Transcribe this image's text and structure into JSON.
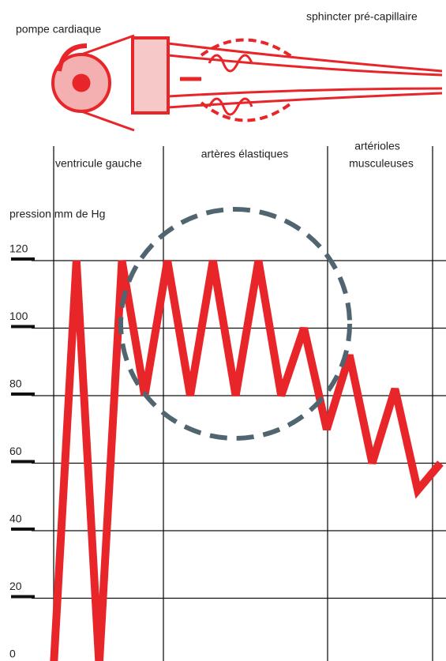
{
  "chart_data": {
    "type": "line",
    "ylabel": "pression mm de Hg",
    "annotations": [
      "pompe cardiaque",
      "sphincter pré-capillaire",
      "ventricule gauche",
      "artères élastiques",
      "artérioles",
      "musculeuses"
    ],
    "categories": [
      null,
      null,
      null,
      null,
      null,
      null,
      null,
      null,
      null,
      null,
      null,
      null,
      null,
      null,
      null,
      null,
      null,
      null
    ],
    "series": [
      {
        "name": null,
        "color": "#e8262a",
        "values": [
          0,
          120,
          0,
          120,
          80,
          120,
          80,
          120,
          80,
          120,
          80,
          100,
          70,
          92,
          60,
          82,
          52,
          60
        ]
      }
    ],
    "ylim": [
      0,
      120
    ],
    "yticks": [
      0,
      20,
      40,
      60,
      80,
      100,
      120
    ],
    "grid": true
  }
}
